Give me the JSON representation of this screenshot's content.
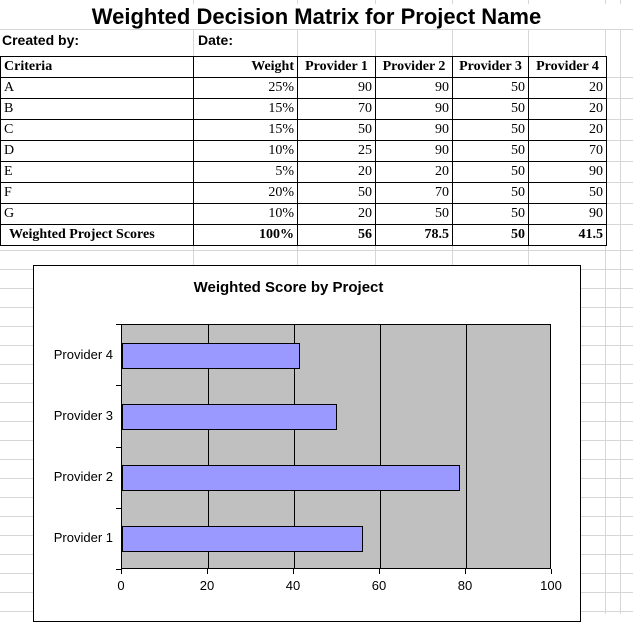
{
  "sheet": {
    "title": "Weighted Decision Matrix for Project Name",
    "created_by_label": "Created by:",
    "date_label": "Date:"
  },
  "table": {
    "headers": [
      "Criteria",
      "Weight",
      "Provider 1",
      "Provider 2",
      "Provider 3",
      "Provider 4"
    ],
    "rows": [
      [
        "A",
        "25%",
        "90",
        "90",
        "50",
        "20"
      ],
      [
        "B",
        "15%",
        "70",
        "90",
        "50",
        "20"
      ],
      [
        "C",
        "15%",
        "50",
        "90",
        "50",
        "20"
      ],
      [
        "D",
        "10%",
        "25",
        "90",
        "50",
        "70"
      ],
      [
        "E",
        "5%",
        "20",
        "20",
        "50",
        "90"
      ],
      [
        "F",
        "20%",
        "50",
        "70",
        "50",
        "50"
      ],
      [
        "G",
        "10%",
        "20",
        "50",
        "50",
        "90"
      ]
    ],
    "total_row": [
      "Weighted Project Scores",
      "100%",
      "56",
      "78.5",
      "50",
      "41.5"
    ]
  },
  "chart_data": {
    "type": "bar",
    "orientation": "horizontal",
    "title": "Weighted Score by Project",
    "categories": [
      "Provider 1",
      "Provider 2",
      "Provider 3",
      "Provider 4"
    ],
    "values": [
      56,
      78.5,
      50,
      41.5
    ],
    "category_order_top_to_bottom": [
      "Provider 4",
      "Provider 3",
      "Provider 2",
      "Provider 1"
    ],
    "xlabel": "",
    "ylabel": "",
    "xlim": [
      0,
      100
    ],
    "x_ticks": [
      "0",
      "20",
      "40",
      "60",
      "80",
      "100"
    ],
    "grid": true,
    "legend": false,
    "bar_color": "#9999FF",
    "plot_background": "#C0C0C0"
  },
  "colors": {
    "bar": "#9999FF",
    "plot_background": "#C0C0C0",
    "sheet_gridline": "#D6D6D6",
    "border": "#000000"
  }
}
